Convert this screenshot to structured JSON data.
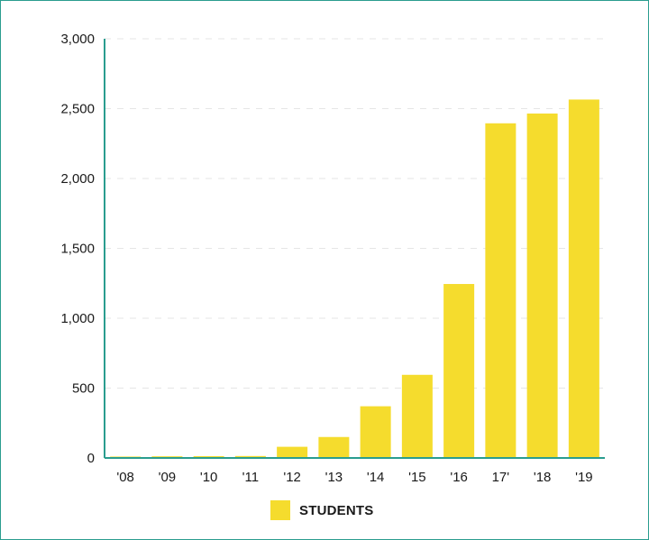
{
  "chart_data": {
    "type": "bar",
    "categories": [
      "'08",
      "'09",
      "'10",
      "'11",
      "'12",
      "'13",
      "'14",
      "'15",
      "'16",
      "17'",
      "'18",
      "'19"
    ],
    "series": [
      {
        "name": "STUDENTS",
        "values": [
          10,
          12,
          13,
          14,
          80,
          150,
          370,
          595,
          1245,
          2395,
          2465,
          2565
        ]
      }
    ],
    "ylim": [
      0,
      3000
    ],
    "yticks": [
      0,
      500,
      1000,
      1500,
      2000,
      2500,
      3000
    ],
    "ytick_labels": [
      "0",
      "500",
      "1,000",
      "1,500",
      "2,000",
      "2,500",
      "3,000"
    ],
    "grid": "horizontal-dashed",
    "legend_position": "bottom-center",
    "colors": {
      "bar": "#f5dc2d",
      "axis": "#2a9d8f",
      "grid": "#e6e6e6"
    }
  }
}
